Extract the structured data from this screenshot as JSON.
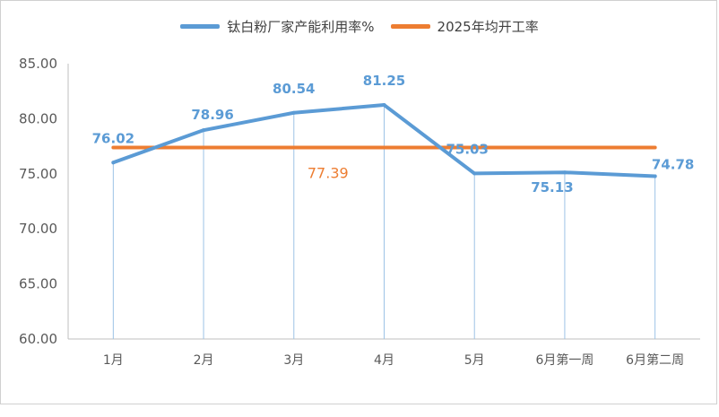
{
  "chart_data": {
    "type": "line",
    "categories": [
      "1月",
      "2月",
      "3月",
      "4月",
      "5月",
      "6月第一周",
      "6月第二周"
    ],
    "series": [
      {
        "name": "钛白粉厂家产能利用率%",
        "values": [
          76.02,
          78.96,
          80.54,
          81.25,
          75.03,
          75.13,
          74.78
        ],
        "color": "#5B9BD5"
      },
      {
        "name": "2025年均开工率",
        "values": [
          77.39,
          77.39,
          77.39,
          77.39,
          77.39,
          77.39,
          77.39
        ],
        "color": "#ED7D31"
      }
    ],
    "data_labels": [
      "76.02",
      "78.96",
      "80.54",
      "81.25",
      "75.03",
      "75.13",
      "74.78"
    ],
    "reference_label": "77.39",
    "yticks": [
      "60.00",
      "65.00",
      "70.00",
      "75.00",
      "80.00",
      "85.00"
    ],
    "ylim": [
      60,
      85
    ],
    "grid": false,
    "drop_lines": true,
    "legend_position": "top"
  }
}
